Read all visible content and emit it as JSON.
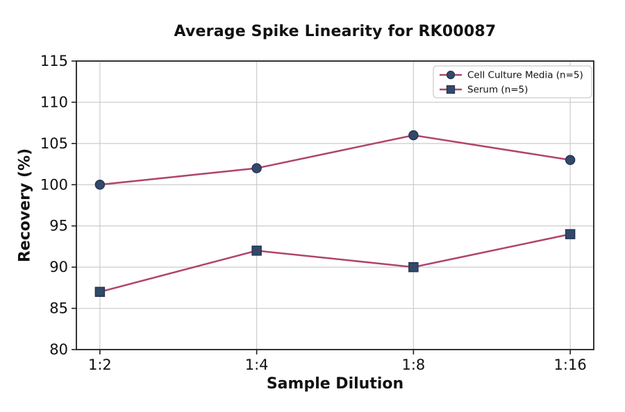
{
  "figure": {
    "title": "Average Spike Linearity for RK00087"
  },
  "chart_data": {
    "type": "line",
    "title": "Average Spike Linearity for RK00087",
    "xlabel": "Sample Dilution",
    "ylabel": "Recovery (%)",
    "categories": [
      "1:2",
      "1:4",
      "1:8",
      "1:16"
    ],
    "series": [
      {
        "name": "Cell Culture Media (n=5)",
        "marker": "circle",
        "values": [
          100,
          102,
          106,
          103
        ]
      },
      {
        "name": "Serum (n=5)",
        "marker": "square",
        "values": [
          87,
          92,
          90,
          94
        ]
      }
    ],
    "ylim": [
      80,
      115
    ],
    "ytick_step": 5,
    "yticks": [
      80,
      85,
      90,
      95,
      100,
      105,
      110,
      115
    ],
    "grid": true,
    "legend_position": "upper right",
    "colors": {
      "line": "#b0436e",
      "marker_fill": "#33496b",
      "marker_edge": "#26354f",
      "grid": "#cccccc",
      "spine": "#1f1f1f",
      "tick_text": "#111111",
      "legend_border": "#c9c9c9",
      "background": "#ffffff"
    }
  }
}
